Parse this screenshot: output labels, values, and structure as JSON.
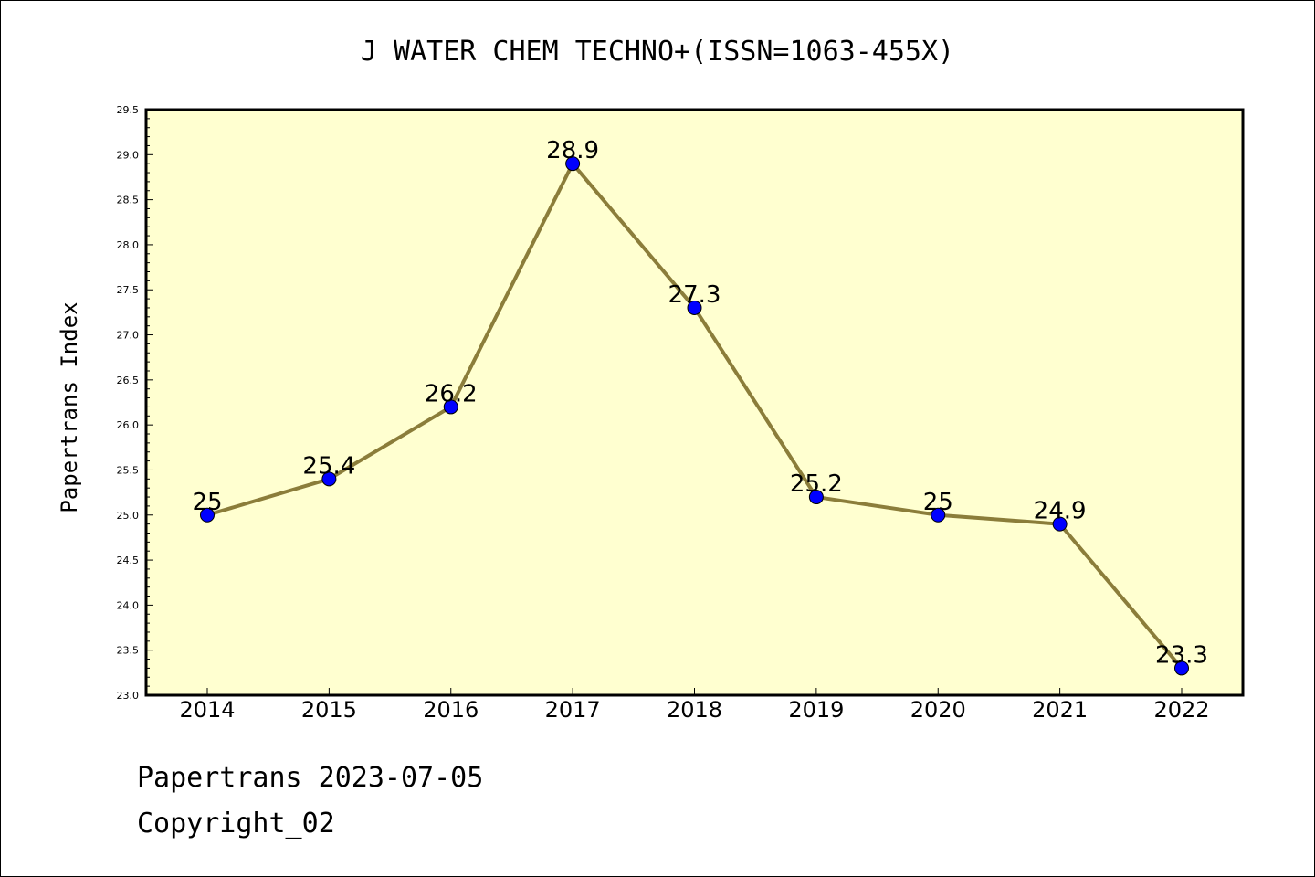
{
  "chart_data": {
    "type": "line",
    "title": "J WATER CHEM TECHNO+(ISSN=1063-455X)",
    "xlabel": "",
    "ylabel": "Papertrans Index",
    "categories": [
      "2014",
      "2015",
      "2016",
      "2017",
      "2018",
      "2019",
      "2020",
      "2021",
      "2022"
    ],
    "values": [
      25,
      25.4,
      26.2,
      28.9,
      27.3,
      25.2,
      25,
      24.9,
      23.3
    ],
    "data_labels": [
      "25",
      "25.4",
      "26.2",
      "28.9",
      "27.3",
      "25.2",
      "25",
      "24.9",
      "23.3"
    ],
    "ylim": [
      23.0,
      29.5
    ],
    "yticks": [
      "23.0",
      "23.5",
      "24.0",
      "24.5",
      "25.0",
      "25.5",
      "26.0",
      "26.5",
      "27.0",
      "27.5",
      "28.0",
      "28.5",
      "29.0",
      "29.5"
    ],
    "grid": false,
    "legend": "none",
    "colors": {
      "plot_background": "#ffffd0",
      "line": "#8b7d3a",
      "marker": "#0000ff"
    }
  },
  "footer": {
    "line1": "Papertrans 2023-07-05",
    "line2": "Copyright_02"
  }
}
